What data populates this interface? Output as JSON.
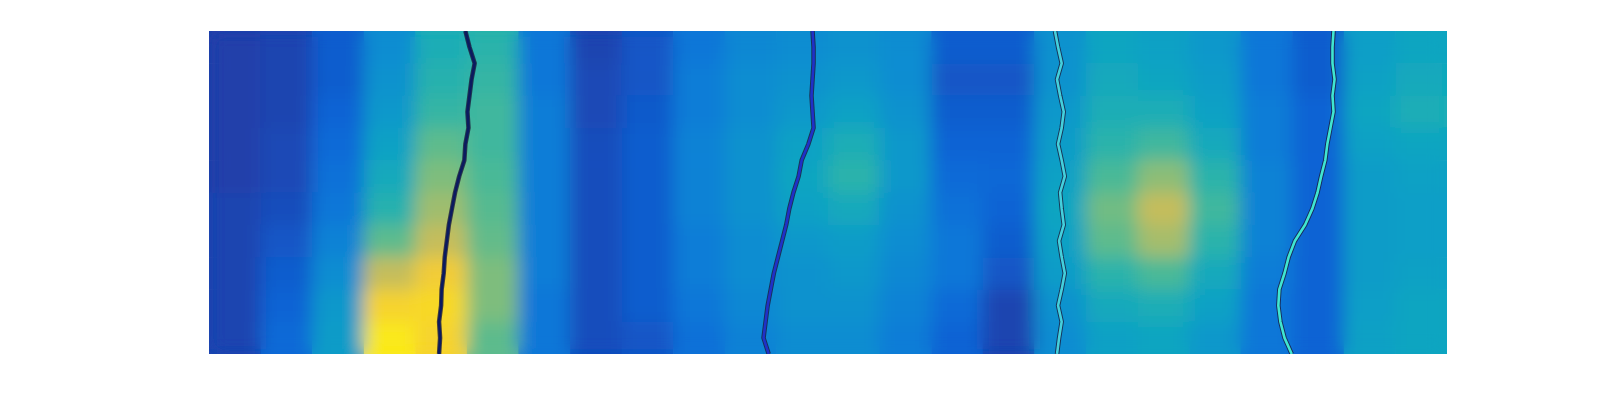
{
  "chart_data": {
    "type": "heatmap",
    "tick_labels": false,
    "xlim": [
      0,
      24
    ],
    "ylim": [
      0,
      10
    ],
    "color_range": [
      0,
      1
    ],
    "cells": [
      [
        0.05,
        0.06,
        0.12,
        0.28,
        0.42,
        0.46,
        0.2,
        0.06,
        0.1,
        0.2,
        0.26,
        0.28,
        0.3,
        0.28,
        0.12,
        0.12,
        0.3,
        0.38,
        0.36,
        0.32,
        0.2,
        0.12,
        0.35,
        0.38
      ],
      [
        0.05,
        0.06,
        0.12,
        0.3,
        0.45,
        0.48,
        0.2,
        0.07,
        0.1,
        0.22,
        0.28,
        0.3,
        0.32,
        0.28,
        0.1,
        0.1,
        0.3,
        0.4,
        0.38,
        0.34,
        0.2,
        0.12,
        0.36,
        0.4
      ],
      [
        0.05,
        0.06,
        0.14,
        0.32,
        0.48,
        0.5,
        0.22,
        0.07,
        0.11,
        0.22,
        0.28,
        0.32,
        0.36,
        0.3,
        0.12,
        0.12,
        0.32,
        0.42,
        0.42,
        0.36,
        0.22,
        0.14,
        0.38,
        0.42
      ],
      [
        0.05,
        0.07,
        0.16,
        0.36,
        0.55,
        0.5,
        0.22,
        0.08,
        0.12,
        0.24,
        0.3,
        0.36,
        0.42,
        0.32,
        0.14,
        0.14,
        0.34,
        0.46,
        0.5,
        0.4,
        0.22,
        0.14,
        0.36,
        0.38
      ],
      [
        0.05,
        0.07,
        0.18,
        0.4,
        0.6,
        0.52,
        0.22,
        0.08,
        0.12,
        0.24,
        0.3,
        0.38,
        0.46,
        0.32,
        0.16,
        0.15,
        0.36,
        0.52,
        0.62,
        0.46,
        0.24,
        0.14,
        0.34,
        0.36
      ],
      [
        0.06,
        0.08,
        0.2,
        0.45,
        0.65,
        0.54,
        0.22,
        0.08,
        0.12,
        0.24,
        0.3,
        0.36,
        0.4,
        0.3,
        0.18,
        0.14,
        0.38,
        0.58,
        0.72,
        0.5,
        0.24,
        0.14,
        0.34,
        0.35
      ],
      [
        0.06,
        0.1,
        0.24,
        0.55,
        0.72,
        0.56,
        0.22,
        0.08,
        0.12,
        0.22,
        0.28,
        0.32,
        0.34,
        0.28,
        0.2,
        0.12,
        0.36,
        0.55,
        0.66,
        0.46,
        0.24,
        0.14,
        0.34,
        0.35
      ],
      [
        0.06,
        0.12,
        0.28,
        0.72,
        0.85,
        0.6,
        0.22,
        0.08,
        0.12,
        0.22,
        0.28,
        0.3,
        0.32,
        0.26,
        0.2,
        0.1,
        0.34,
        0.46,
        0.52,
        0.4,
        0.22,
        0.14,
        0.34,
        0.36
      ],
      [
        0.06,
        0.14,
        0.32,
        0.88,
        0.9,
        0.6,
        0.2,
        0.08,
        0.12,
        0.2,
        0.26,
        0.3,
        0.3,
        0.24,
        0.16,
        0.06,
        0.3,
        0.4,
        0.42,
        0.36,
        0.2,
        0.14,
        0.35,
        0.38
      ],
      [
        0.06,
        0.16,
        0.34,
        0.95,
        0.88,
        0.55,
        0.2,
        0.08,
        0.1,
        0.18,
        0.24,
        0.28,
        0.28,
        0.22,
        0.14,
        0.06,
        0.28,
        0.36,
        0.38,
        0.32,
        0.2,
        0.14,
        0.36,
        0.38
      ]
    ],
    "series": [
      {
        "type": "line",
        "color": "#0b1a60",
        "x": [
          4.97,
          5.05,
          5.15,
          5.09,
          5.05,
          5.01,
          5.03,
          4.97,
          4.95,
          4.85,
          4.77,
          4.71,
          4.65,
          4.61,
          4.57,
          4.55,
          4.51,
          4.5,
          4.46,
          4.48,
          4.46
        ],
        "y": [
          0,
          0.5,
          1,
          1.5,
          2,
          2.5,
          3,
          3.5,
          4,
          4.5,
          5,
          5.5,
          6,
          6.5,
          7,
          7.5,
          8,
          8.5,
          9,
          9.5,
          10
        ]
      },
      {
        "type": "line",
        "color": "#2030c8",
        "x": [
          11.7,
          11.72,
          11.72,
          11.7,
          11.68,
          11.7,
          11.72,
          11.62,
          11.49,
          11.43,
          11.33,
          11.25,
          11.19,
          11.11,
          11.03,
          10.95,
          10.89,
          10.83,
          10.79,
          10.75,
          10.85
        ],
        "y": [
          0,
          0.5,
          1,
          1.5,
          2,
          2.5,
          3,
          3.5,
          4,
          4.5,
          5,
          5.5,
          6,
          6.5,
          7,
          7.5,
          8,
          8.5,
          9,
          9.5,
          10
        ]
      },
      {
        "type": "line",
        "color": "#44d0dc",
        "x": [
          16.4,
          16.46,
          16.53,
          16.44,
          16.5,
          16.57,
          16.53,
          16.46,
          16.53,
          16.59,
          16.5,
          16.53,
          16.57,
          16.48,
          16.53,
          16.59,
          16.53,
          16.46,
          16.53,
          16.48,
          16.44
        ],
        "y": [
          0,
          0.5,
          1,
          1.5,
          2,
          2.5,
          3,
          3.5,
          4,
          4.5,
          5,
          5.5,
          6,
          6.5,
          7,
          7.5,
          8,
          8.5,
          9,
          9.5,
          10
        ]
      },
      {
        "type": "line",
        "color": "#40e6d0",
        "x": [
          21.8,
          21.78,
          21.78,
          21.82,
          21.78,
          21.8,
          21.74,
          21.68,
          21.64,
          21.56,
          21.49,
          21.39,
          21.25,
          21.05,
          20.93,
          20.85,
          20.75,
          20.73,
          20.77,
          20.85,
          20.99
        ],
        "y": [
          0,
          0.5,
          1,
          1.5,
          2,
          2.5,
          3,
          3.5,
          4,
          4.5,
          5,
          5.5,
          6,
          6.5,
          7,
          7.5,
          8,
          8.5,
          9,
          9.5,
          10
        ]
      }
    ]
  }
}
